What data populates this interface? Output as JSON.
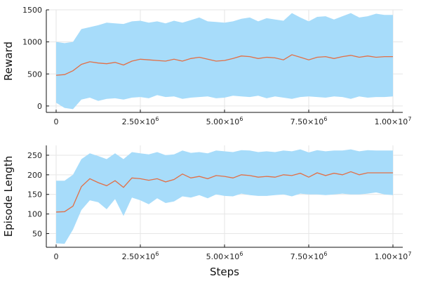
{
  "chart_data": [
    {
      "type": "line",
      "ylabel": "Reward",
      "xlabel": "",
      "xlim": [
        0,
        10000000
      ],
      "ylim": [
        -100,
        1500
      ],
      "x_ticks": [
        0,
        2500000,
        5000000,
        7500000,
        10000000
      ],
      "x_tick_labels": [
        {
          "base": "0",
          "exp": ""
        },
        {
          "base": "2.50×10",
          "exp": "6"
        },
        {
          "base": "5.00×10",
          "exp": "6"
        },
        {
          "base": "7.50×10",
          "exp": "6"
        },
        {
          "base": "1.00×10",
          "exp": "7"
        }
      ],
      "y_ticks": [
        0,
        500,
        1000,
        1500
      ],
      "y_tick_labels": [
        "0",
        "500",
        "1000",
        "1500"
      ],
      "grid": true,
      "colors": {
        "mean": "#e26f46",
        "band": "#a7dcfa"
      },
      "series": [
        {
          "x": [
            0,
            250000,
            500000,
            750000,
            1000000,
            1250000,
            1500000,
            1750000,
            2000000,
            2250000,
            2500000,
            2750000,
            3000000,
            3250000,
            3500000,
            3750000,
            4000000,
            4250000,
            4500000,
            4750000,
            5000000,
            5250000,
            5500000,
            5750000,
            6000000,
            6250000,
            6500000,
            6750000,
            7000000,
            7250000,
            7500000,
            7750000,
            8000000,
            8250000,
            8500000,
            8750000,
            9000000,
            9250000,
            9500000,
            9750000,
            10000000
          ],
          "mean": [
            480,
            490,
            550,
            650,
            690,
            670,
            660,
            680,
            640,
            700,
            730,
            720,
            710,
            700,
            730,
            700,
            740,
            760,
            730,
            700,
            710,
            740,
            780,
            770,
            740,
            760,
            750,
            720,
            800,
            760,
            720,
            760,
            770,
            740,
            770,
            790,
            760,
            780,
            760,
            770,
            770
          ],
          "lower": [
            50,
            -30,
            -50,
            100,
            130,
            80,
            110,
            120,
            100,
            130,
            140,
            120,
            170,
            140,
            150,
            110,
            130,
            140,
            150,
            120,
            130,
            160,
            150,
            140,
            160,
            120,
            150,
            130,
            110,
            140,
            150,
            140,
            130,
            150,
            140,
            110,
            150,
            130,
            140,
            140,
            150
          ],
          "upper": [
            1000,
            980,
            1000,
            1200,
            1230,
            1260,
            1300,
            1290,
            1280,
            1320,
            1330,
            1300,
            1320,
            1290,
            1330,
            1300,
            1340,
            1380,
            1320,
            1310,
            1300,
            1320,
            1360,
            1380,
            1320,
            1370,
            1350,
            1330,
            1450,
            1380,
            1320,
            1390,
            1400,
            1350,
            1400,
            1450,
            1380,
            1400,
            1440,
            1420,
            1420
          ]
        }
      ]
    },
    {
      "type": "line",
      "ylabel": "Episode Length",
      "xlabel": "Steps",
      "xlim": [
        0,
        10000000
      ],
      "ylim": [
        15,
        275
      ],
      "x_ticks": [
        0,
        2500000,
        5000000,
        7500000,
        10000000
      ],
      "x_tick_labels": [
        {
          "base": "0",
          "exp": ""
        },
        {
          "base": "2.50×10",
          "exp": "6"
        },
        {
          "base": "5.00×10",
          "exp": "6"
        },
        {
          "base": "7.50×10",
          "exp": "6"
        },
        {
          "base": "1.00×10",
          "exp": "7"
        }
      ],
      "y_ticks": [
        50,
        100,
        150,
        200,
        250
      ],
      "y_tick_labels": [
        "50",
        "100",
        "150",
        "200",
        "250"
      ],
      "grid": true,
      "colors": {
        "mean": "#e26f46",
        "band": "#a7dcfa"
      },
      "series": [
        {
          "x": [
            0,
            250000,
            500000,
            750000,
            1000000,
            1250000,
            1500000,
            1750000,
            2000000,
            2250000,
            2500000,
            2750000,
            3000000,
            3250000,
            3500000,
            3750000,
            4000000,
            4250000,
            4500000,
            4750000,
            5000000,
            5250000,
            5500000,
            5750000,
            6000000,
            6250000,
            6500000,
            6750000,
            7000000,
            7250000,
            7500000,
            7750000,
            8000000,
            8250000,
            8500000,
            8750000,
            9000000,
            9250000,
            9500000,
            9750000,
            10000000
          ],
          "mean": [
            105,
            106,
            120,
            170,
            190,
            180,
            172,
            185,
            168,
            192,
            190,
            186,
            190,
            182,
            188,
            202,
            192,
            196,
            190,
            198,
            196,
            192,
            200,
            198,
            194,
            196,
            194,
            200,
            198,
            204,
            194,
            205,
            198,
            204,
            200,
            208,
            200,
            205,
            205,
            205,
            205
          ],
          "lower": [
            25,
            24,
            60,
            110,
            135,
            130,
            112,
            138,
            95,
            142,
            135,
            125,
            140,
            128,
            132,
            145,
            142,
            148,
            140,
            150,
            146,
            145,
            152,
            148,
            146,
            146,
            148,
            150,
            145,
            152,
            150,
            150,
            148,
            150,
            152,
            150,
            150,
            152,
            155,
            150,
            148
          ],
          "upper": [
            185,
            185,
            200,
            240,
            255,
            248,
            240,
            255,
            240,
            258,
            255,
            252,
            258,
            250,
            252,
            262,
            256,
            258,
            255,
            262,
            260,
            258,
            263,
            262,
            258,
            260,
            258,
            262,
            260,
            265,
            257,
            263,
            260,
            262,
            262,
            265,
            260,
            263,
            262,
            262,
            262
          ]
        }
      ]
    }
  ]
}
